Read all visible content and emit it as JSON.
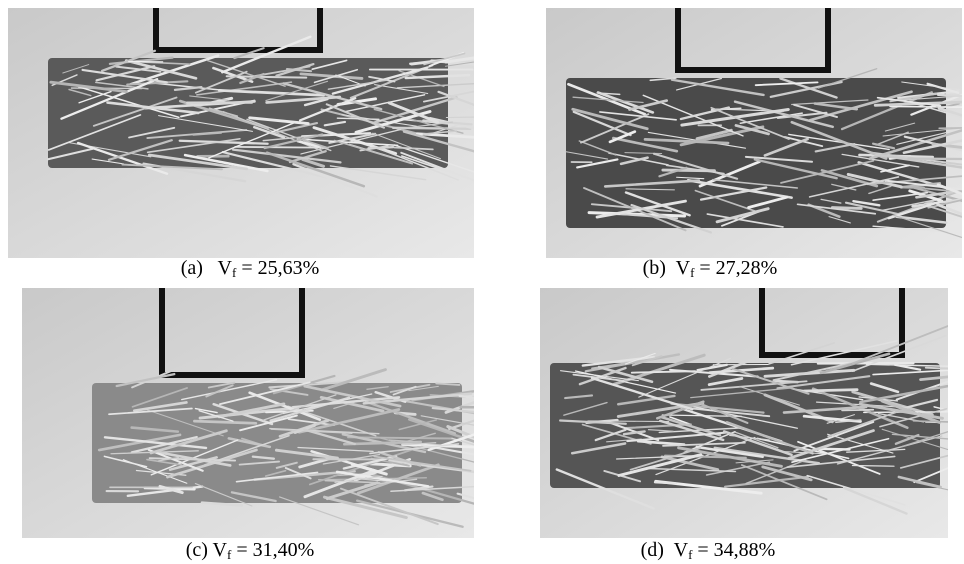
{
  "panels": [
    {
      "label": "(a)",
      "symbol": "V",
      "subscript": "f",
      "value": "= 25,63%"
    },
    {
      "label": "(b)",
      "symbol": "V",
      "subscript": "f",
      "value": "= 27,28%"
    },
    {
      "label": "(c)",
      "symbol": "V",
      "subscript": "f",
      "value": "= 31,40%"
    },
    {
      "label": "(d)",
      "symbol": "V",
      "subscript": "f",
      "value": "= 34,88%"
    }
  ]
}
